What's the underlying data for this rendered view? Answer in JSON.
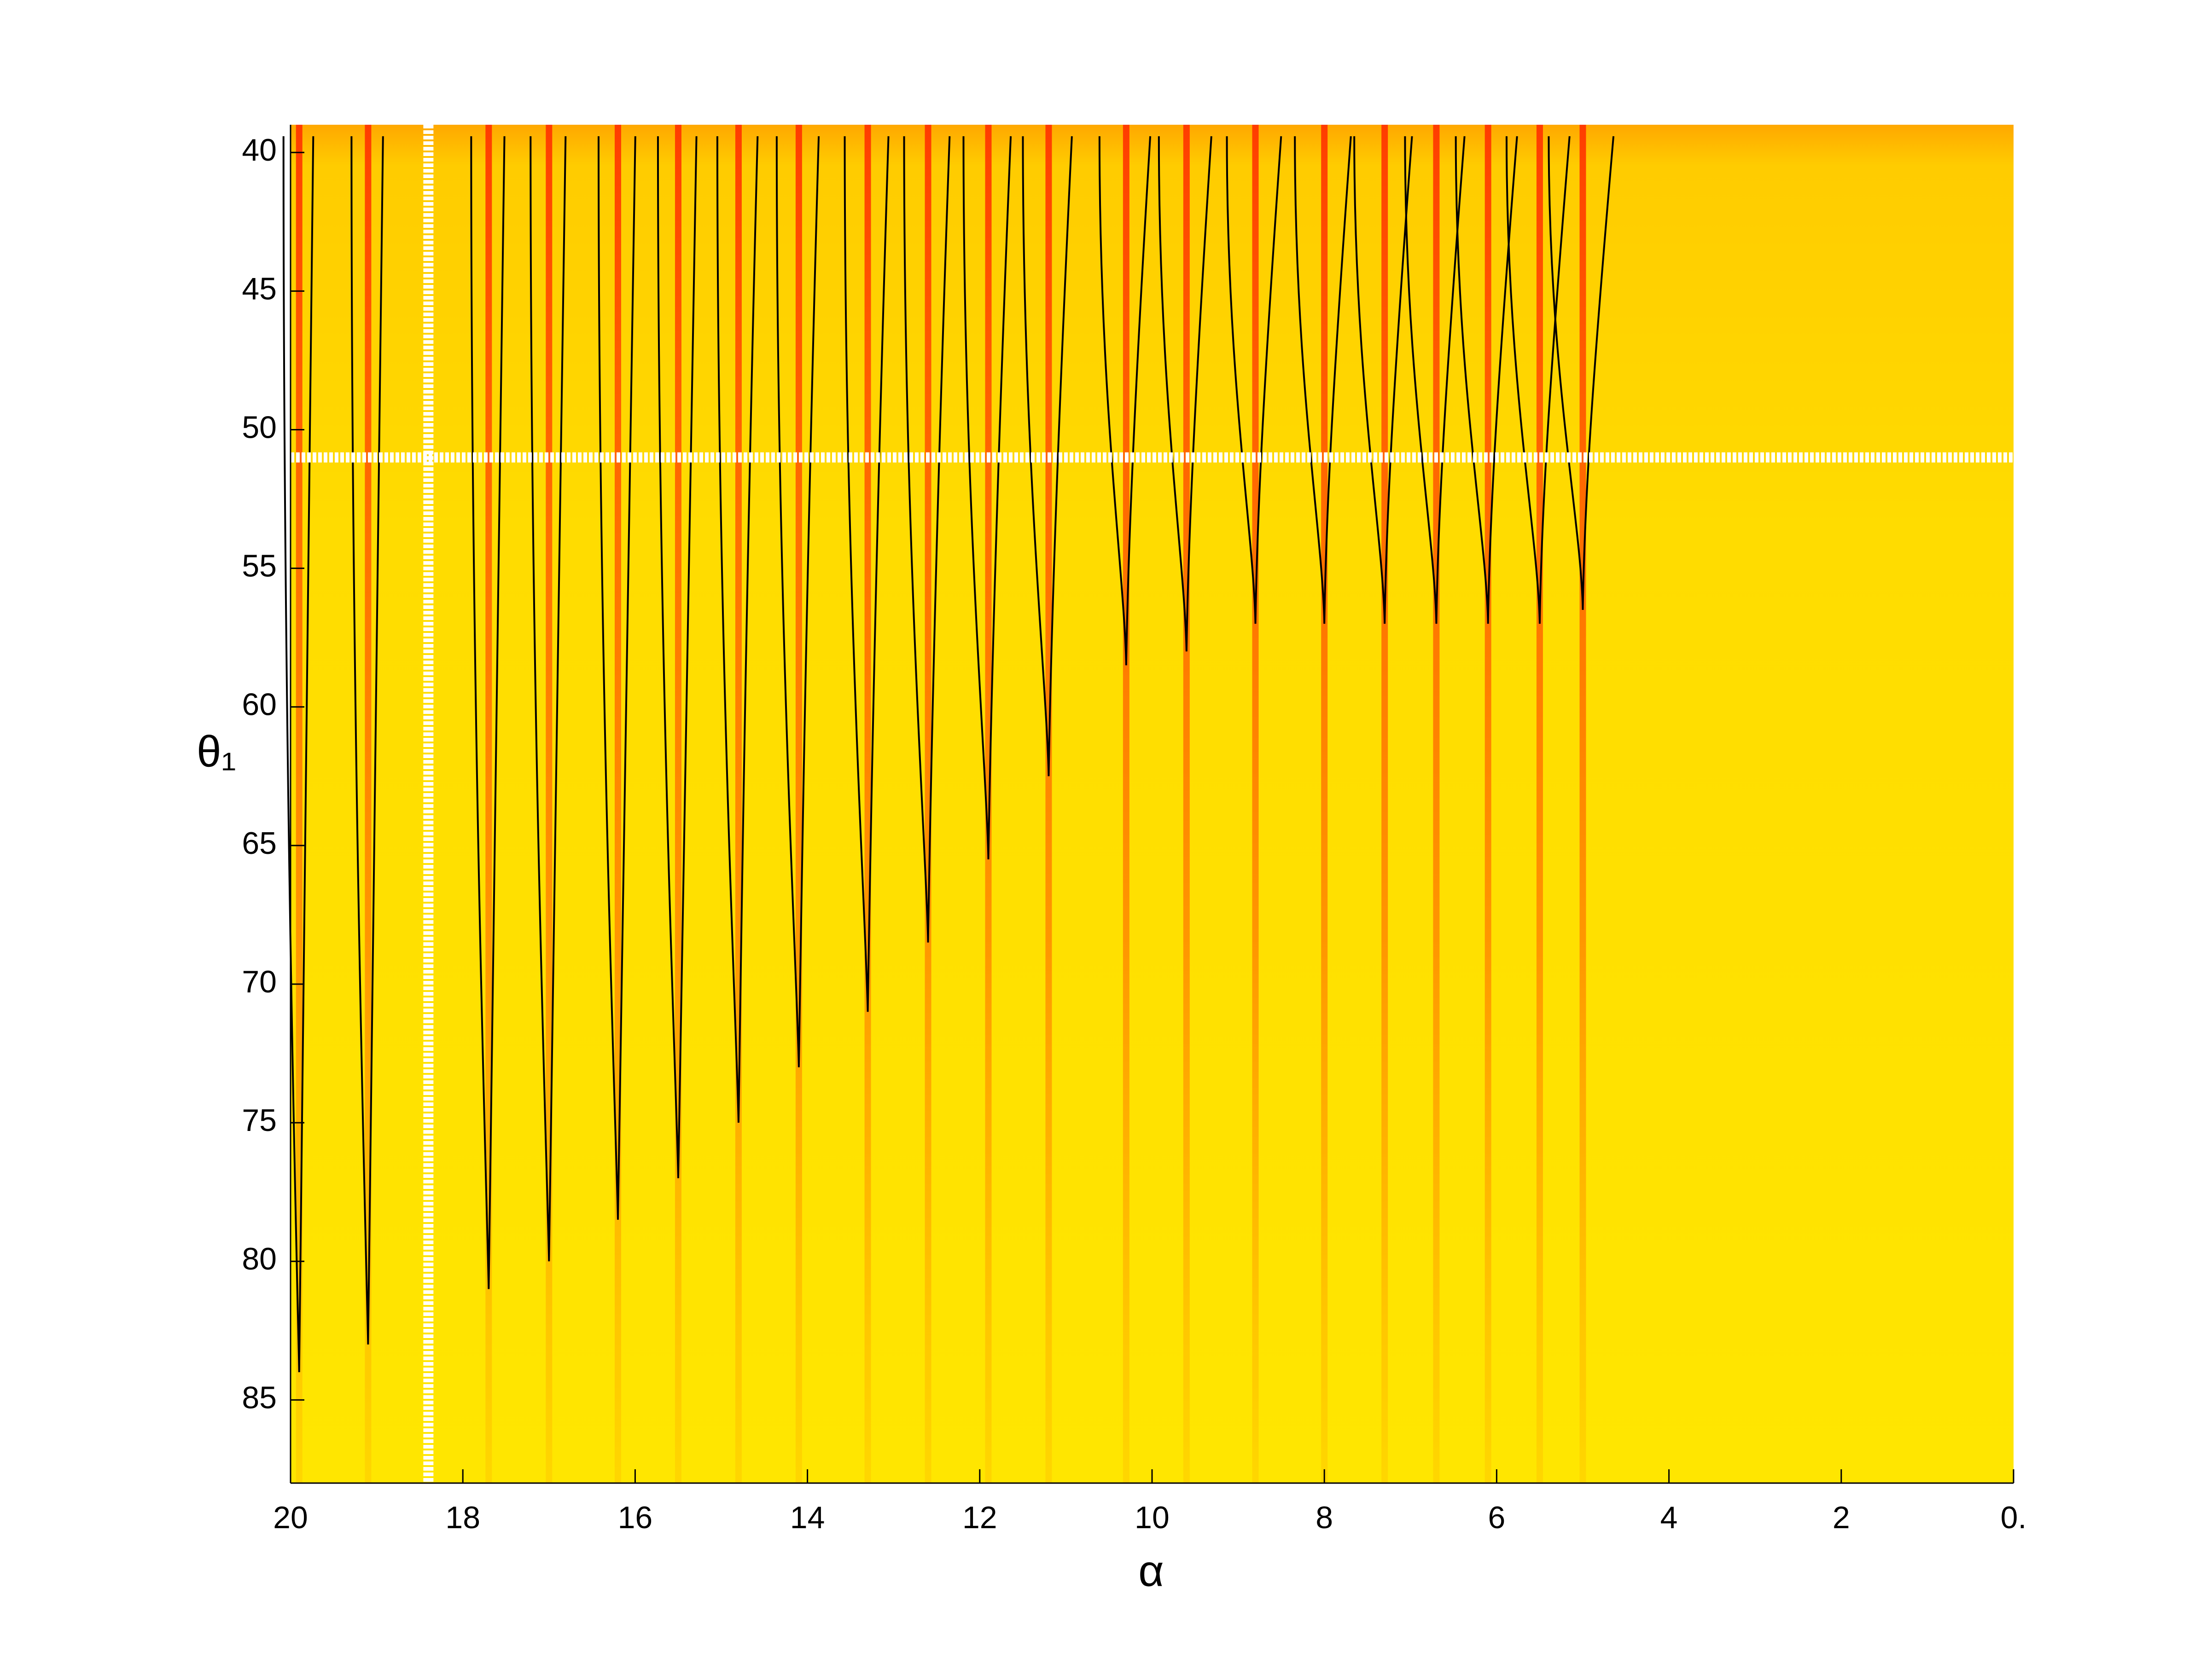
{
  "chart_data": {
    "type": "contour",
    "x_label": "α",
    "y_label": "θ₁",
    "xlim": [
      20,
      0
    ],
    "ylim": [
      39,
      88
    ],
    "xticks": [
      20,
      18,
      16,
      14,
      12,
      10,
      8,
      6,
      4,
      2,
      {
        "value": 0,
        "label": "0."
      }
    ],
    "yticks": [
      40,
      45,
      50,
      55,
      60,
      65,
      70,
      75,
      80,
      85
    ],
    "reversed_y": true,
    "background_color": "#ffe600",
    "stripe_color": "#ff5a00",
    "contour_color": "#000000",
    "reference_color": "#ffffff",
    "loops": {
      "alpha": [
        19.9,
        19.1,
        17.7,
        17.0,
        16.2,
        15.5,
        14.8,
        14.1,
        13.3,
        12.6,
        11.9,
        11.2,
        10.3,
        9.6,
        8.8,
        8.0,
        7.3,
        6.7,
        6.1,
        5.5,
        5.0
      ],
      "tip_theta1": [
        84,
        83,
        81,
        80,
        78.5,
        77,
        75,
        73,
        71,
        68.5,
        65.5,
        62.5,
        58.5,
        58,
        57,
        57,
        57,
        57,
        57,
        57,
        56.5
      ]
    },
    "reference_lines": {
      "alpha": 18.4,
      "theta1": 51
    }
  }
}
